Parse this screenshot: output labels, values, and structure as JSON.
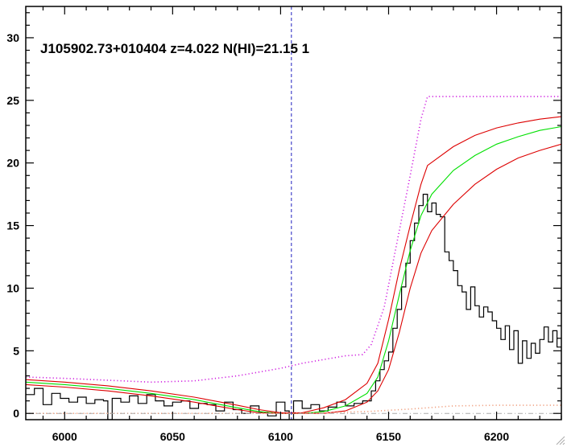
{
  "chart_data": {
    "type": "line",
    "title": "J105902.73+010404 z=4.022 N(HI)=21.15 1",
    "xlabel": "",
    "ylabel": "",
    "xlim": [
      5982,
      6230
    ],
    "ylim": [
      -0.5,
      32.5
    ],
    "x_ticks": [
      6000,
      6050,
      6100,
      6150,
      6200
    ],
    "y_ticks": [
      0,
      5,
      10,
      15,
      20,
      25,
      30
    ],
    "reference_line_x": 6105,
    "zero_line_y": 0,
    "grid": false,
    "legend": "none",
    "series": [
      {
        "key": "flux",
        "style": "steps",
        "color": "#000000",
        "x": [
          5982,
          5986,
          5990,
          5994,
          5998,
          6002,
          6006,
          6010,
          6014,
          6018,
          6020,
          6022,
          6026,
          6030,
          6034,
          6038,
          6042,
          6046,
          6050,
          6054,
          6058,
          6062,
          6066,
          6070,
          6074,
          6078,
          6082,
          6086,
          6090,
          6094,
          6098,
          6102,
          6104,
          6106,
          6110,
          6114,
          6118,
          6122,
          6126,
          6130,
          6134,
          6138,
          6142,
          6144,
          6146,
          6148,
          6150,
          6152,
          6154,
          6156,
          6158,
          6160,
          6162,
          6164,
          6166,
          6168,
          6170,
          6172,
          6174,
          6176,
          6178,
          6180,
          6182,
          6184,
          6186,
          6188,
          6190,
          6192,
          6194,
          6196,
          6198,
          6200,
          6202,
          6204,
          6206,
          6208,
          6210,
          6212,
          6214,
          6216,
          6218,
          6220,
          6222,
          6224,
          6226,
          6228
        ],
        "y": [
          1.5,
          2.0,
          0.7,
          1.6,
          1.2,
          0.9,
          1.3,
          0.8,
          1.1,
          1.0,
          -0.5,
          1.2,
          0.9,
          1.4,
          0.8,
          1.5,
          1.0,
          0.6,
          0.9,
          1.0,
          0.4,
          0.8,
          0.7,
          0.2,
          0.9,
          0.3,
          0.0,
          0.6,
          0.1,
          -0.2,
          0.9,
          0.2,
          -0.8,
          1.0,
          0.4,
          0.7,
          0.2,
          0.5,
          0.9,
          0.6,
          0.8,
          1.0,
          1.8,
          2.6,
          3.5,
          4.2,
          4.9,
          6.8,
          8.3,
          10.1,
          12.0,
          13.8,
          15.2,
          16.6,
          17.5,
          16.1,
          16.8,
          15.9,
          15.7,
          12.9,
          12.2,
          11.4,
          10.2,
          9.7,
          8.3,
          10.1,
          8.6,
          7.7,
          8.5,
          8.1,
          7.4,
          6.8,
          5.9,
          7.0,
          5.1,
          6.6,
          4.0,
          5.8,
          4.4,
          5.6,
          4.8,
          5.9,
          6.9,
          5.7,
          6.6,
          5.3
        ]
      },
      {
        "key": "model",
        "style": "line",
        "color": "#00e000",
        "x": [
          5982,
          6000,
          6020,
          6040,
          6060,
          6080,
          6090,
          6100,
          6110,
          6120,
          6130,
          6140,
          6145,
          6150,
          6155,
          6160,
          6165,
          6170,
          6180,
          6190,
          6200,
          6210,
          6220,
          6230
        ],
        "y": [
          2.5,
          2.3,
          2.0,
          1.6,
          1.1,
          0.45,
          0.15,
          0.0,
          0.0,
          0.15,
          0.6,
          1.6,
          2.9,
          5.8,
          9.5,
          13.0,
          15.8,
          17.5,
          19.4,
          20.6,
          21.5,
          22.1,
          22.6,
          22.9
        ]
      },
      {
        "key": "model-upper",
        "style": "line",
        "color": "#dd0000",
        "x": [
          5982,
          6000,
          6020,
          6040,
          6060,
          6080,
          6090,
          6100,
          6110,
          6120,
          6130,
          6140,
          6145,
          6150,
          6155,
          6160,
          6165,
          6168,
          6180,
          6190,
          6200,
          6210,
          6220,
          6230
        ],
        "y": [
          2.7,
          2.5,
          2.2,
          1.8,
          1.3,
          0.65,
          0.3,
          0.05,
          0.05,
          0.45,
          1.1,
          2.4,
          4.0,
          7.5,
          11.5,
          15.0,
          18.3,
          19.8,
          21.3,
          22.2,
          22.8,
          23.2,
          23.5,
          23.7
        ]
      },
      {
        "key": "model-lower",
        "style": "line",
        "color": "#dd0000",
        "x": [
          5982,
          6000,
          6020,
          6040,
          6060,
          6080,
          6090,
          6100,
          6110,
          6120,
          6130,
          6140,
          6145,
          6150,
          6155,
          6160,
          6165,
          6170,
          6180,
          6190,
          6200,
          6210,
          6220,
          6230
        ],
        "y": [
          2.3,
          2.1,
          1.8,
          1.4,
          0.9,
          0.3,
          0.05,
          0.0,
          0.0,
          0.0,
          0.2,
          0.9,
          1.8,
          3.5,
          6.5,
          10.0,
          12.8,
          14.6,
          16.7,
          18.3,
          19.5,
          20.4,
          21.0,
          21.5
        ]
      },
      {
        "key": "error-upper",
        "style": "dotted",
        "color": "#d020e0",
        "x": [
          5982,
          6000,
          6040,
          6060,
          6080,
          6100,
          6110,
          6120,
          6130,
          6138,
          6142,
          6148,
          6152,
          6156,
          6160,
          6165,
          6168,
          6200,
          6230
        ],
        "y": [
          2.9,
          2.8,
          2.5,
          2.6,
          3.0,
          3.6,
          4.0,
          4.3,
          4.6,
          4.7,
          5.5,
          8.5,
          12.0,
          15.5,
          19.0,
          23.5,
          25.3,
          25.3,
          25.3
        ]
      },
      {
        "key": "error",
        "style": "dotted",
        "color": "#f0a080",
        "x": [
          5982,
          6100,
          6120,
          6140,
          6160,
          6180,
          6200,
          6230
        ],
        "y": [
          0.0,
          0.0,
          0.05,
          0.15,
          0.35,
          0.6,
          0.65,
          0.65
        ]
      }
    ]
  }
}
